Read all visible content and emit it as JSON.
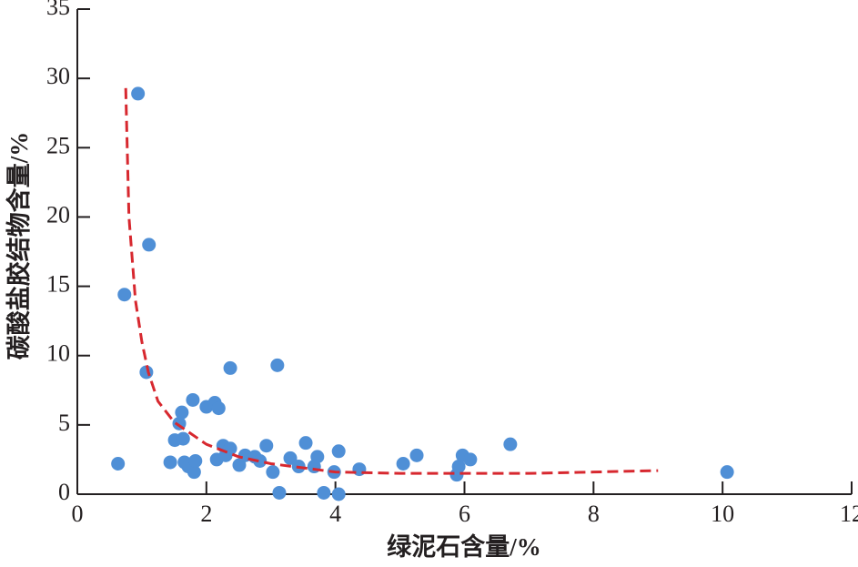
{
  "chart_data": {
    "type": "scatter",
    "x_label": "绿泥石含量/%",
    "y_label": "碳酸盐胶结物含量/%",
    "xlim": [
      0,
      12
    ],
    "xticks": [
      0,
      2,
      4,
      6,
      8,
      10,
      12
    ],
    "ylim": [
      0,
      35
    ],
    "yticks": [
      0,
      5,
      10,
      15,
      20,
      25,
      30,
      35
    ],
    "series": [
      {
        "type": "scatter",
        "color": "#4f8fd6",
        "x": [
          0.63,
          0.94,
          1.11,
          0.73,
          1.07,
          1.44,
          1.51,
          1.58,
          1.62,
          1.64,
          1.66,
          1.72,
          1.81,
          1.83,
          1.79,
          2.0,
          2.13,
          2.19,
          2.37,
          2.26,
          2.16,
          2.3,
          2.37,
          2.51,
          2.6,
          2.75,
          2.83,
          2.93,
          3.03,
          3.1,
          3.13,
          3.3,
          3.43,
          3.54,
          3.67,
          3.72,
          3.82,
          3.98,
          4.05,
          4.05,
          4.37,
          5.05,
          5.26,
          5.88,
          5.91,
          5.97,
          6.09,
          6.71,
          10.07
        ],
        "values": [
          2.2,
          28.9,
          18.0,
          14.4,
          8.8,
          2.3,
          3.9,
          5.1,
          5.9,
          4.0,
          2.3,
          2.0,
          1.6,
          2.4,
          6.8,
          6.3,
          6.6,
          6.2,
          9.1,
          3.5,
          2.5,
          2.8,
          3.3,
          2.1,
          2.8,
          2.7,
          2.4,
          3.5,
          1.6,
          9.3,
          0.1,
          2.6,
          2.0,
          3.7,
          2.0,
          2.7,
          0.1,
          1.6,
          3.1,
          0.0,
          1.8,
          2.2,
          2.8,
          1.4,
          2.0,
          2.8,
          2.5,
          3.6,
          1.6
        ]
      },
      {
        "type": "line",
        "color": "#d7282f",
        "line_style": "dashed",
        "x": [
          0.75,
          0.8,
          0.9,
          1.0,
          1.1,
          1.25,
          1.5,
          2,
          2.5,
          3,
          4,
          5,
          6,
          7,
          8,
          9
        ],
        "values": [
          29.3,
          20.0,
          14.0,
          11.0,
          8.8,
          6.7,
          5.2,
          3.6,
          2.7,
          2.2,
          1.6,
          1.5,
          1.5,
          1.5,
          1.6,
          1.7
        ]
      }
    ]
  }
}
